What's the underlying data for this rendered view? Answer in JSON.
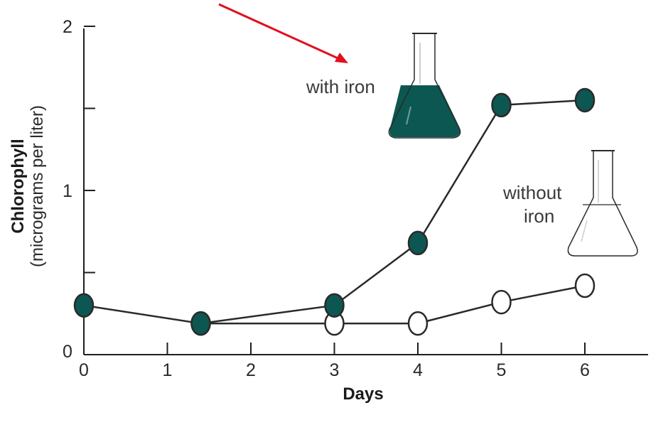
{
  "chart_data": {
    "type": "line",
    "xlabel": "Days",
    "ylabel_main": "Chlorophyll",
    "ylabel_sub": "(micrograms per liter)",
    "xlim": [
      0,
      6.8
    ],
    "ylim": [
      0,
      2
    ],
    "x_ticks": [
      0,
      1,
      2,
      3,
      4,
      5,
      6
    ],
    "y_ticks": [
      0,
      0.5,
      1,
      1.5,
      2
    ],
    "y_tick_labels": {
      "0": "0",
      "1": "1",
      "2": "2"
    },
    "grid": false,
    "series": [
      {
        "name": "with iron",
        "marker": "filled",
        "color": "#0c5752",
        "points": [
          {
            "x": 0,
            "y": 0.3
          },
          {
            "x": 1.4,
            "y": 0.19
          },
          {
            "x": 3,
            "y": 0.3
          },
          {
            "x": 4,
            "y": 0.68
          },
          {
            "x": 5,
            "y": 1.52
          },
          {
            "x": 6,
            "y": 1.55
          }
        ]
      },
      {
        "name": "without iron",
        "marker": "open",
        "color": "#ffffff",
        "points": [
          {
            "x": 1.4,
            "y": 0.19
          },
          {
            "x": 3,
            "y": 0.19
          },
          {
            "x": 4,
            "y": 0.19
          },
          {
            "x": 5,
            "y": 0.32
          },
          {
            "x": 6,
            "y": 0.42
          }
        ]
      }
    ]
  },
  "annotations": {
    "with_iron": "with iron",
    "without_iron_line1": "without",
    "without_iron_line2": "iron"
  },
  "arrow_color": "#e0101e"
}
